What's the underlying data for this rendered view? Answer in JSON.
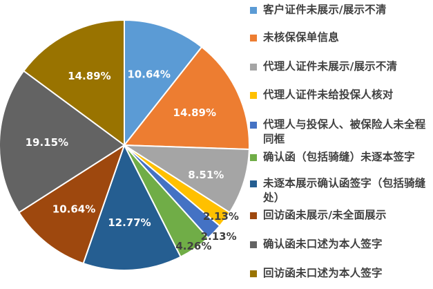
{
  "chart_data": {
    "type": "pie",
    "title": "",
    "legend_position": "right",
    "slices": [
      {
        "label": "客户证件未展示/展示不清",
        "value": 10.64,
        "display": "10.64%",
        "color": "#5B9BD5"
      },
      {
        "label": "未核保保单信息",
        "value": 14.89,
        "display": "14.89%",
        "color": "#ED7D31"
      },
      {
        "label": "代理人证件未展示/展示不清",
        "value": 8.51,
        "display": "8.51%",
        "color": "#A5A5A5"
      },
      {
        "label": "代理人证件未给投保人核对",
        "value": 2.13,
        "display": "2.13%",
        "color": "#FFC000"
      },
      {
        "label": "代理人与投保人、被保险人未全程同框",
        "value": 2.13,
        "display": "2.13%",
        "color": "#4472C4"
      },
      {
        "label": "确认函（包括骑缝）未逐本签字",
        "value": 4.26,
        "display": "4.26%",
        "color": "#70AD47"
      },
      {
        "label": "未逐本展示确认函签字（包括骑缝处）",
        "value": 12.77,
        "display": "12.77%",
        "color": "#255E91"
      },
      {
        "label": "回访函未展示/未全面展示",
        "value": 10.64,
        "display": "10.64%",
        "color": "#9E480E"
      },
      {
        "label": "确认函未口述为本人签字",
        "value": 19.15,
        "display": "19.15%",
        "color": "#636363"
      },
      {
        "label": "回访函未口述为本人签字",
        "value": 14.89,
        "display": "14.89%",
        "color": "#997300"
      }
    ]
  }
}
